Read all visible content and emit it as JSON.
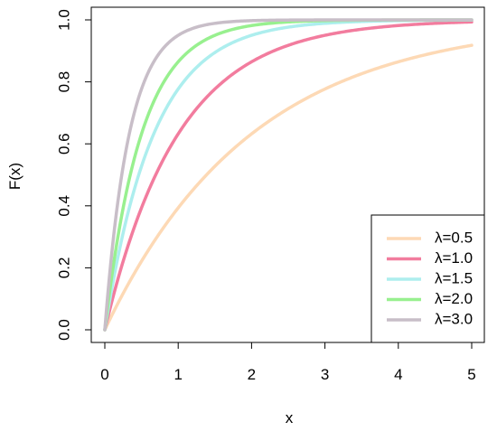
{
  "chart_data": {
    "type": "line",
    "title": "",
    "xlabel": "x",
    "ylabel": "F(x)",
    "xlim": [
      0,
      5
    ],
    "ylim": [
      0,
      1
    ],
    "x_ticks": [
      "0",
      "1",
      "2",
      "3",
      "4",
      "5"
    ],
    "y_ticks": [
      "0.0",
      "0.2",
      "0.4",
      "0.6",
      "0.8",
      "1.0"
    ],
    "grid": false,
    "legend_position": "bottom-right",
    "series": [
      {
        "name": "λ=0.5",
        "rate": 0.5,
        "color": "#FDD9B5",
        "x": [
          0,
          0.5,
          1,
          1.5,
          2,
          2.5,
          3,
          3.5,
          4,
          4.5,
          5
        ],
        "values": [
          0,
          0.22,
          0.39,
          0.53,
          0.63,
          0.71,
          0.78,
          0.83,
          0.86,
          0.89,
          0.92
        ]
      },
      {
        "name": "λ=1.0",
        "rate": 1.0,
        "color": "#F27C9E",
        "x": [
          0,
          0.5,
          1,
          1.5,
          2,
          2.5,
          3,
          3.5,
          4,
          4.5,
          5
        ],
        "values": [
          0,
          0.39,
          0.63,
          0.78,
          0.86,
          0.92,
          0.95,
          0.97,
          0.98,
          0.99,
          0.99
        ]
      },
      {
        "name": "λ=1.5",
        "rate": 1.5,
        "color": "#ADEEEE",
        "x": [
          0,
          0.5,
          1,
          1.5,
          2,
          2.5,
          3,
          3.5,
          4,
          4.5,
          5
        ],
        "values": [
          0,
          0.53,
          0.78,
          0.89,
          0.95,
          0.98,
          0.99,
          0.99,
          1.0,
          1.0,
          1.0
        ]
      },
      {
        "name": "λ=2.0",
        "rate": 2.0,
        "color": "#98F08F",
        "x": [
          0,
          0.5,
          1,
          1.5,
          2,
          2.5,
          3,
          3.5,
          4,
          4.5,
          5
        ],
        "values": [
          0,
          0.63,
          0.86,
          0.95,
          0.98,
          0.99,
          1.0,
          1.0,
          1.0,
          1.0,
          1.0
        ]
      },
      {
        "name": "λ=3.0",
        "rate": 3.0,
        "color": "#C8BEC8",
        "x": [
          0,
          0.5,
          1,
          1.5,
          2,
          2.5,
          3,
          3.5,
          4,
          4.5,
          5
        ],
        "values": [
          0,
          0.78,
          0.95,
          0.99,
          1.0,
          1.0,
          1.0,
          1.0,
          1.0,
          1.0,
          1.0
        ]
      }
    ]
  }
}
